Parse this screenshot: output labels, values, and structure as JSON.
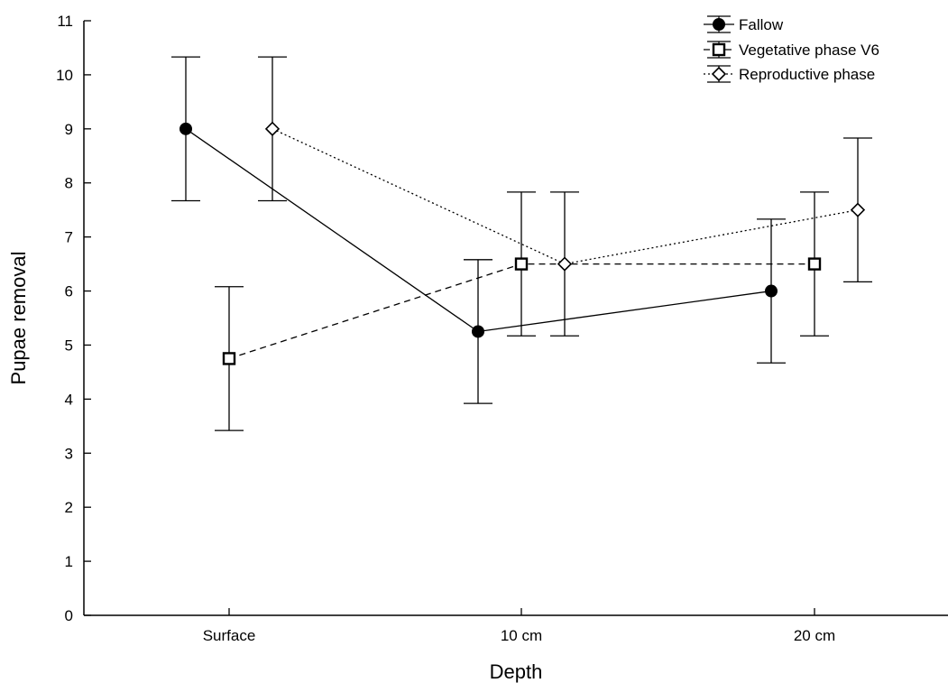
{
  "chart_data": {
    "type": "line",
    "title": "",
    "xlabel": "Depth",
    "ylabel": "Pupae removal",
    "categories": [
      "Surface",
      "10 cm",
      "20 cm"
    ],
    "ylim": [
      0,
      11
    ],
    "yticks": [
      "0",
      "1",
      "2",
      "3",
      "4",
      "5",
      "6",
      "7",
      "8",
      "9",
      "10",
      "11"
    ],
    "grid": false,
    "legend_position": "top-right",
    "error_bars": true,
    "series": [
      {
        "name": "Fallow",
        "values": [
          9.0,
          5.25,
          6.0
        ],
        "err_low": [
          7.67,
          3.92,
          4.67
        ],
        "err_high": [
          10.33,
          6.58,
          7.33
        ],
        "marker": "filled-circle",
        "line_style": "solid"
      },
      {
        "name": "Vegetative phase V6",
        "values": [
          4.75,
          6.5,
          6.5
        ],
        "err_low": [
          3.42,
          5.17,
          5.17
        ],
        "err_high": [
          6.08,
          7.83,
          7.83
        ],
        "marker": "open-square",
        "line_style": "dashed"
      },
      {
        "name": "Reproductive phase",
        "values": [
          9.0,
          6.5,
          7.5
        ],
        "err_low": [
          7.67,
          5.17,
          6.17
        ],
        "err_high": [
          10.33,
          7.83,
          8.83
        ],
        "marker": "open-diamond",
        "line_style": "dotted"
      }
    ],
    "colors": {
      "ink": "#000000",
      "background": "#ffffff"
    }
  }
}
